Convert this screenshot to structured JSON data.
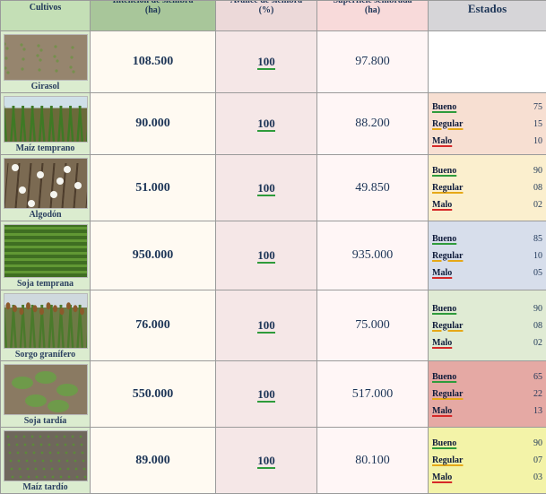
{
  "header": {
    "cultivos": "Cultivos",
    "intencion": "Intención de siembra\n(ha)",
    "avance": "Avance de siembra\n(%)",
    "superficie": "Superficie sembrada\n(ha)",
    "estados": "Estados"
  },
  "rows": [
    {
      "cultivo": "Girasol",
      "intencion": "108.500",
      "avance": "100",
      "superficie": "97.800",
      "estado_color": "#ffffff",
      "estados": []
    },
    {
      "cultivo": "Maíz temprano",
      "intencion": "90.000",
      "avance": "100",
      "superficie": "88.200",
      "estado_color": "#f7dfd2",
      "estados": [
        {
          "label": "Bueno",
          "value": "75"
        },
        {
          "label": "Regular",
          "value": "15"
        },
        {
          "label": "Malo",
          "value": "10"
        }
      ]
    },
    {
      "cultivo": "Algodón",
      "intencion": "51.000",
      "avance": "100",
      "superficie": "49.850",
      "estado_color": "#fbefce",
      "estados": [
        {
          "label": "Bueno",
          "value": "90"
        },
        {
          "label": "Regular",
          "value": "08"
        },
        {
          "label": "Malo",
          "value": "02"
        }
      ]
    },
    {
      "cultivo": "Soja temprana",
      "intencion": "950.000",
      "avance": "100",
      "superficie": "935.000",
      "estado_color": "#d7deeb",
      "estados": [
        {
          "label": "Bueno",
          "value": "85"
        },
        {
          "label": "Regular",
          "value": "10"
        },
        {
          "label": "Malo",
          "value": "05"
        }
      ]
    },
    {
      "cultivo": "Sorgo granífero",
      "intencion": "76.000",
      "avance": "100",
      "superficie": "75.000",
      "estado_color": "#e0ebd4",
      "estados": [
        {
          "label": "Bueno",
          "value": "90"
        },
        {
          "label": "Regular",
          "value": "08"
        },
        {
          "label": "Malo",
          "value": "02"
        }
      ]
    },
    {
      "cultivo": "Soja tardía",
      "intencion": "550.000",
      "avance": "100",
      "superficie": "517.000",
      "estado_color": "#e5a9a4",
      "estados": [
        {
          "label": "Bueno",
          "value": "65"
        },
        {
          "label": "Regular",
          "value": "22"
        },
        {
          "label": "Malo",
          "value": "13"
        }
      ]
    },
    {
      "cultivo": "Maíz tardío",
      "intencion": "89.000",
      "avance": "100",
      "superficie": "80.100",
      "estado_color": "#f3f3a8",
      "estados": [
        {
          "label": "Bueno",
          "value": "90"
        },
        {
          "label": "Regular",
          "value": "07"
        },
        {
          "label": "Malo",
          "value": "03"
        }
      ]
    }
  ]
}
